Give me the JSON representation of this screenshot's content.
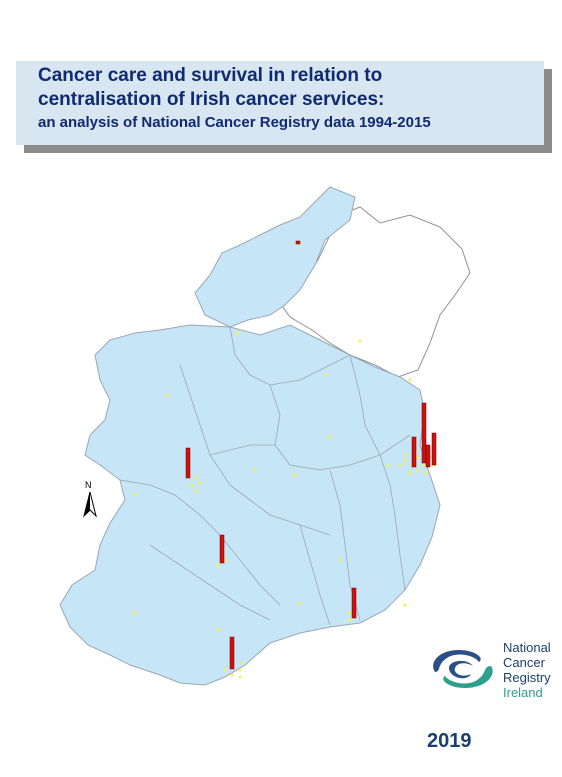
{
  "title": {
    "line1": "Cancer care and survival in relation to",
    "line2": "centralisation of Irish cancer services:",
    "line3": "an analysis of National Cancer Registry data 1994-2015"
  },
  "map": {
    "north_label": "N",
    "colors": {
      "land": "#c6e6f7",
      "border": "#a9a9b6",
      "bar": "#cc1111",
      "point": "#f6f24a"
    }
  },
  "logo": {
    "line1": "National",
    "line2": "Cancer",
    "line3": "Registry",
    "line4": "Ireland",
    "icon": "ncri-swirl-icon"
  },
  "year": "2019"
}
